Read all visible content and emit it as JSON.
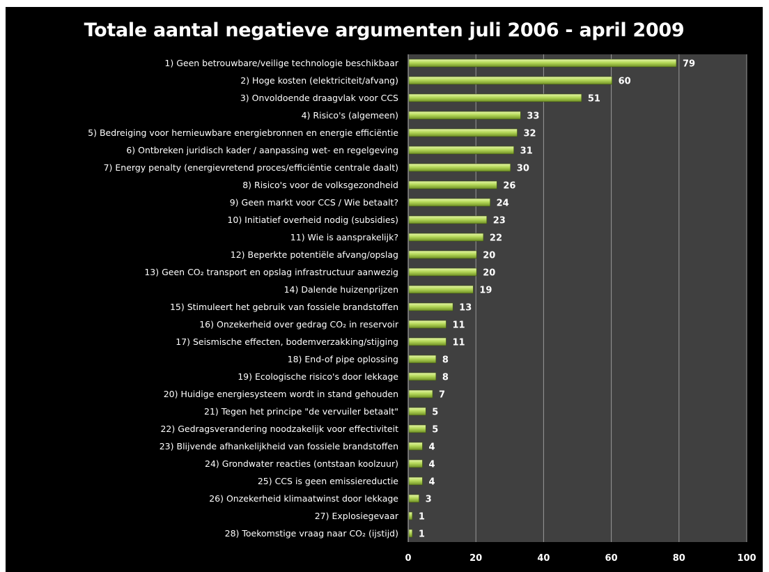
{
  "chart_data": {
    "type": "bar",
    "orientation": "horizontal",
    "title": "Totale aantal negatieve argumenten juli 2006 - april 2009",
    "xlim": [
      0,
      100
    ],
    "x_ticks": [
      "0",
      "20",
      "40",
      "60",
      "80",
      "100"
    ],
    "grid": true,
    "legend": "none",
    "colors": {
      "background": "#000000",
      "plot_area": "#404040",
      "bar": "#b5d95a",
      "bar_highlight": "#e6f5a6",
      "bar_shadow": "#6f8f24",
      "gridline": "#9a9a9a",
      "text": "#ffffff"
    },
    "categories": [
      "1) Geen betrouwbare/veilige technologie beschikbaar",
      "2) Hoge kosten (elektriciteit/afvang)",
      "3) Onvoldoende draagvlak voor CCS",
      "4) Risico's (algemeen)",
      "5) Bedreiging voor hernieuwbare energiebronnen en energie efficiëntie",
      "6) Ontbreken juridisch kader / aanpassing  wet- en regelgeving",
      "7) Energy penalty (energievretend proces/efficiëntie centrale daalt)",
      "8) Risico's voor de volksgezondheid",
      "9) Geen markt voor CCS / Wie betaalt?",
      "10) Initiatief overheid nodig (subsidies)",
      "11) Wie is aansprakelijk?",
      "12) Beperkte potentiële afvang/opslag",
      "13) Geen CO₂ transport en opslag infrastructuur aanwezig",
      "14) Dalende huizenprijzen",
      "15) Stimuleert het gebruik van fossiele brandstoffen",
      "16) Onzekerheid over gedrag  CO₂ in reservoir",
      "17) Seismische effecten, bodemverzakking/stijging",
      "18) End-of pipe oplossing",
      "19) Ecologische risico's door lekkage",
      "20) Huidige energiesysteem wordt in stand  gehouden",
      "21) Tegen het principe \"de vervuiler betaalt\"",
      "22) Gedragsverandering noodzakelijk voor effectiviteit",
      "23) Blijvende afhankelijkheid van fossiele brandstoffen",
      "24) Grondwater reacties (ontstaan  koolzuur)",
      "25) CCS is geen emissiereductie",
      "26) Onzekerheid klimaatwinst  door lekkage",
      "27) Explosiegevaar",
      "28) Toekomstige vraag naar CO₂ (ijstijd)"
    ],
    "values": [
      79,
      60,
      51,
      33,
      32,
      31,
      30,
      26,
      24,
      23,
      22,
      20,
      20,
      19,
      13,
      11,
      11,
      8,
      8,
      7,
      5,
      5,
      4,
      4,
      4,
      3,
      1,
      1
    ]
  }
}
